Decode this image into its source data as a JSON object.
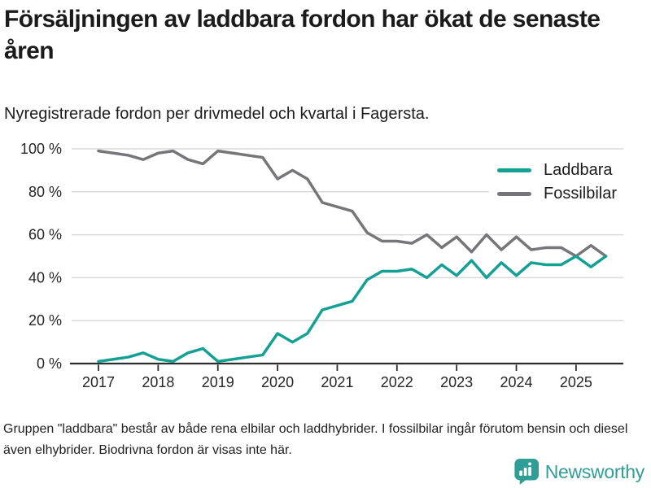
{
  "header": {
    "title": "Försäljningen av laddbara fordon har ökat de senaste åren",
    "subtitle": "Nyregistrerade fordon per drivmedel och kvartal i Fagersta."
  },
  "chart_data": {
    "type": "line",
    "unit": "%",
    "grid": true,
    "legend_position": "top-right",
    "ylim": [
      0,
      100
    ],
    "quarters": [
      "2017 Q1",
      "2017 Q2",
      "2017 Q3",
      "2017 Q4",
      "2018 Q1",
      "2018 Q2",
      "2018 Q3",
      "2018 Q4",
      "2019 Q1",
      "2019 Q2",
      "2019 Q3",
      "2019 Q4",
      "2020 Q1",
      "2020 Q2",
      "2020 Q3",
      "2020 Q4",
      "2021 Q1",
      "2021 Q2",
      "2021 Q3",
      "2021 Q4",
      "2022 Q1",
      "2022 Q2",
      "2022 Q3",
      "2022 Q4",
      "2023 Q1",
      "2023 Q2",
      "2023 Q3",
      "2023 Q4",
      "2024 Q1",
      "2024 Q2",
      "2024 Q3",
      "2024 Q4",
      "2025 Q1",
      "2025 Q2",
      "2025 Q3"
    ],
    "series": [
      {
        "name": "Laddbara",
        "color": "#15A094",
        "values": [
          1,
          2,
          3,
          5,
          2,
          1,
          5,
          7,
          1,
          2,
          3,
          4,
          14,
          10,
          14,
          25,
          27,
          29,
          39,
          43,
          43,
          44,
          40,
          46,
          41,
          48,
          40,
          47,
          41,
          47,
          46,
          46,
          50,
          45,
          50
        ]
      },
      {
        "name": "Fossilbilar",
        "color": "#76767A",
        "values": [
          99,
          98,
          97,
          95,
          98,
          99,
          95,
          93,
          99,
          98,
          97,
          96,
          86,
          90,
          86,
          75,
          73,
          71,
          61,
          57,
          57,
          56,
          60,
          54,
          59,
          52,
          60,
          53,
          59,
          53,
          54,
          54,
          50,
          55,
          50
        ]
      }
    ],
    "yticks": [
      {
        "value": 100,
        "label": "100 %"
      },
      {
        "value": 80,
        "label": "80 %"
      },
      {
        "value": 60,
        "label": "60 %"
      },
      {
        "value": 40,
        "label": "40 %"
      },
      {
        "value": 20,
        "label": "20 %"
      },
      {
        "value": 0,
        "label": "0 %"
      }
    ],
    "xticks": [
      {
        "label": "2017",
        "quarter_index": 0
      },
      {
        "label": "2018",
        "quarter_index": 4
      },
      {
        "label": "2019",
        "quarter_index": 8
      },
      {
        "label": "2020",
        "quarter_index": 12
      },
      {
        "label": "2021",
        "quarter_index": 16
      },
      {
        "label": "2022",
        "quarter_index": 20
      },
      {
        "label": "2023",
        "quarter_index": 24
      },
      {
        "label": "2024",
        "quarter_index": 28
      },
      {
        "label": "2025",
        "quarter_index": 32
      }
    ]
  },
  "footer": {
    "note": "Gruppen \"laddbara\" består av både rena elbilar och laddhybrider. I fossilbilar ingår förutom bensin och diesel även elhybrider. Biodrivna fordon är visas inte här."
  },
  "branding": {
    "logo_text": "Newsworthy",
    "brand_color": "#2F9E97"
  }
}
